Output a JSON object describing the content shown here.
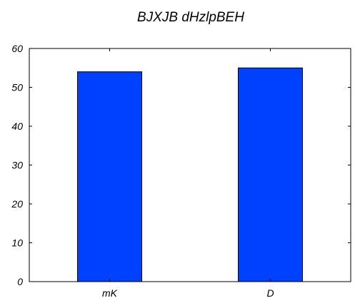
{
  "chart_data": {
    "type": "bar",
    "title": "BJXJB dHzlpBEH",
    "xlabel": "",
    "ylabel": "",
    "categories": [
      "mK",
      "D"
    ],
    "values": [
      54,
      55
    ],
    "ylim": [
      0,
      60
    ],
    "yticks": [
      0,
      10,
      20,
      30,
      40,
      50,
      60
    ],
    "bar_color": "#0040ff",
    "grid": false
  }
}
